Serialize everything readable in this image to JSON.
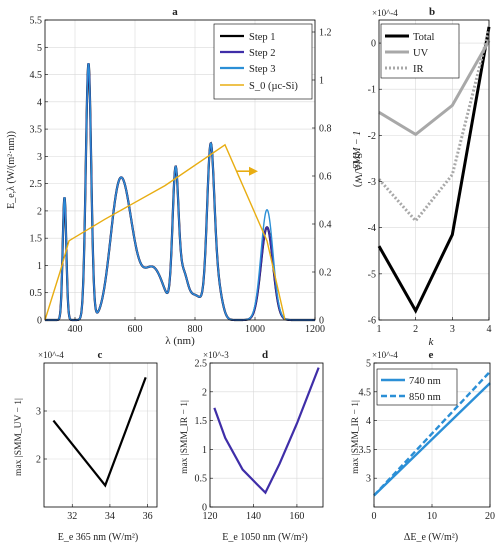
{
  "colors": {
    "step1": "#000000",
    "step2": "#3f2ea8",
    "step3": "#2b8fd6",
    "s0": "#e8ad12",
    "total": "#000000",
    "uv": "#a8a8a8",
    "ir": "#a8a8a8",
    "c": "#000000",
    "d": "#3f2ea8",
    "e": "#2b8fd6"
  },
  "chart_data": [
    {
      "panel": "a",
      "type": "line",
      "title": "a",
      "xlabel": "λ (nm)",
      "ylabel_left": "E_e,λ (W/(m²·nm))",
      "ylabel_right": "S (A/W)",
      "xlim": [
        300,
        1200
      ],
      "ylim_left": [
        0,
        5.5
      ],
      "ylim_right": [
        0,
        1.25
      ],
      "xticks": [
        "400",
        "600",
        "800",
        "1000",
        "1200"
      ],
      "yticks_left": [
        "0",
        "0.5",
        "1",
        "1.5",
        "2",
        "2.5",
        "3",
        "3.5",
        "4",
        "4.5",
        "5",
        "5.5"
      ],
      "yticks_right": [
        "0",
        "0.2",
        "0.4",
        "0.6",
        "0.8",
        "1",
        "1.2"
      ],
      "legend": [
        "Step 1",
        "Step 2",
        "Step 3",
        "S_0 (µc-Si)"
      ],
      "legend_position": "top-right",
      "grid": true,
      "spectrum_peaks": [
        {
          "center": 365,
          "height": 2.25,
          "width": 6
        },
        {
          "center": 445,
          "height": 4.7,
          "width": 9
        },
        {
          "center": 540,
          "height": 1.7,
          "width": 28
        },
        {
          "center": 575,
          "height": 1.4,
          "width": 30
        },
        {
          "center": 660,
          "height": 0.95,
          "width": 38
        },
        {
          "center": 735,
          "height": 2.5,
          "width": 10
        },
        {
          "center": 760,
          "height": 0.65,
          "width": 14
        },
        {
          "center": 852,
          "height": 2.95,
          "width": 12
        },
        {
          "center": 875,
          "height": 0.6,
          "width": 15
        },
        {
          "center": 800,
          "height": 0.45,
          "width": 30
        }
      ],
      "step_ir_peak": {
        "center": 1040,
        "width": 20,
        "step1": 1.7,
        "step2": 1.7,
        "step3": 2.02
      },
      "s0": {
        "x": [
          300,
          350,
          380,
          500,
          700,
          900,
          1040,
          1100
        ],
        "y": [
          0,
          0.2,
          0.33,
          0.42,
          0.56,
          0.73,
          0.33,
          0
        ]
      },
      "annotation_arrow": {
        "x": [
          940,
          1010
        ],
        "y": [
          0.62,
          0.62
        ],
        "direction": "right"
      }
    },
    {
      "panel": "b",
      "type": "line",
      "title": "b",
      "exponent": "×10^-4",
      "xlabel": "k",
      "ylabel": "SMM − 1",
      "xlim": [
        1,
        4
      ],
      "ylim": [
        -6,
        0.5
      ],
      "xticks": [
        "1",
        "2",
        "3",
        "4"
      ],
      "yticks": [
        "-6",
        "-5",
        "-4",
        "-3",
        "-2",
        "-1",
        "0"
      ],
      "legend": [
        "Total",
        "UV",
        "IR"
      ],
      "legend_position": "top-left",
      "grid": true,
      "series": [
        {
          "name": "Total",
          "x": [
            1,
            2,
            3,
            4
          ],
          "values": [
            -4.4,
            -5.8,
            -4.15,
            0.35
          ]
        },
        {
          "name": "UV",
          "x": [
            1,
            2,
            3,
            4
          ],
          "values": [
            -1.5,
            -1.98,
            -1.35,
            0.05
          ]
        },
        {
          "name": "IR",
          "x": [
            1,
            2,
            3,
            4
          ],
          "values": [
            -2.95,
            -3.85,
            -2.85,
            0.3
          ]
        }
      ]
    },
    {
      "panel": "c",
      "type": "line",
      "title": "c",
      "exponent": "×10^-4",
      "xlabel": "E_e 365 nm (W/m²)",
      "ylabel": "max |SMM_UV − 1|",
      "xlim": [
        30.5,
        36.5
      ],
      "ylim": [
        1,
        4
      ],
      "xticks": [
        "32",
        "34",
        "36"
      ],
      "yticks": [
        "2",
        "3"
      ],
      "grid": true,
      "series": [
        {
          "name": "",
          "x": [
            31.0,
            33.75,
            35.9
          ],
          "values": [
            2.8,
            1.45,
            3.7
          ]
        }
      ]
    },
    {
      "panel": "d",
      "type": "line",
      "title": "d",
      "exponent": "×10^-3",
      "xlabel": "E_e 1050 nm (W/m²)",
      "ylabel": "max |SMM_IR − 1|",
      "xlim": [
        120,
        172
      ],
      "ylim": [
        0,
        2.5
      ],
      "xticks": [
        "120",
        "140",
        "160"
      ],
      "yticks": [
        "0",
        "0.5",
        "1",
        "1.5",
        "2",
        "2.5"
      ],
      "grid": true,
      "series": [
        {
          "name": "",
          "x": [
            122,
            127,
            135,
            141.5,
            145.5,
            152,
            160,
            170
          ],
          "values": [
            1.72,
            1.2,
            0.65,
            0.4,
            0.25,
            0.75,
            1.45,
            2.42
          ]
        }
      ]
    },
    {
      "panel": "e",
      "type": "line",
      "title": "e",
      "exponent": "×10^-4",
      "xlabel": "ΔE_e (W/m²)",
      "ylabel": "max |SMM_IR − 1|",
      "xlim": [
        0,
        20
      ],
      "ylim": [
        2.5,
        5
      ],
      "xticks": [
        "0",
        "10",
        "20"
      ],
      "yticks": [
        "3",
        "3.5",
        "4",
        "4.5",
        "5"
      ],
      "legend": [
        "740 nm",
        "850 nm"
      ],
      "legend_position": "top-left",
      "grid": true,
      "series": [
        {
          "name": "740 nm",
          "x": [
            0,
            20
          ],
          "values": [
            2.7,
            4.65
          ]
        },
        {
          "name": "850 nm",
          "x": [
            0,
            20
          ],
          "values": [
            2.7,
            4.85
          ]
        }
      ]
    }
  ]
}
